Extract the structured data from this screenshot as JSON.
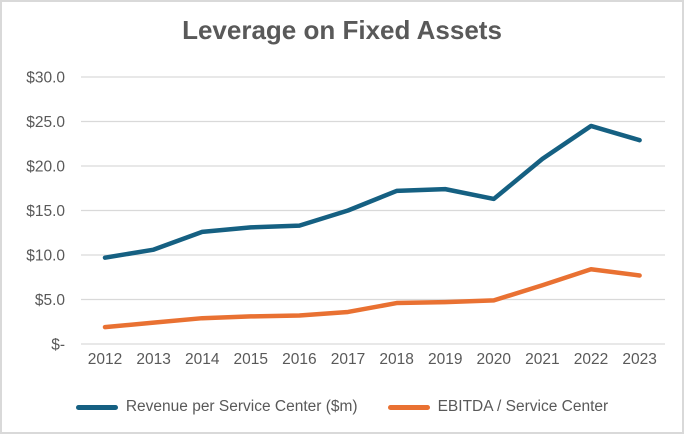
{
  "chart_data": {
    "type": "line",
    "title": "Leverage on Fixed Assets",
    "categories": [
      "2012",
      "2013",
      "2014",
      "2015",
      "2016",
      "2017",
      "2018",
      "2019",
      "2020",
      "2021",
      "2022",
      "2023"
    ],
    "series": [
      {
        "name": "Revenue per Service Center ($m)",
        "color": "#156082",
        "values": [
          9.7,
          10.6,
          12.6,
          13.1,
          13.3,
          15.0,
          17.2,
          17.4,
          16.3,
          20.8,
          24.5,
          22.9
        ]
      },
      {
        "name": "EBITDA / Service Center",
        "color": "#E97132",
        "values": [
          1.9,
          2.4,
          2.9,
          3.1,
          3.2,
          3.6,
          4.6,
          4.7,
          4.9,
          6.6,
          8.4,
          7.7
        ]
      }
    ],
    "y_ticks": [
      "$30.0",
      "$25.0",
      "$20.0",
      "$15.0",
      "$10.0",
      "$5.0",
      "$-"
    ],
    "y_tick_values": [
      30,
      25,
      20,
      15,
      10,
      5,
      0
    ],
    "ylim": [
      0,
      30
    ],
    "xlabel": "",
    "ylabel": "",
    "grid": true,
    "legend_position": "bottom",
    "colors": {
      "gridline": "#D9D9D9",
      "border": "#D9D9D9",
      "text": "#595959",
      "background": "#FFFFFF"
    }
  }
}
